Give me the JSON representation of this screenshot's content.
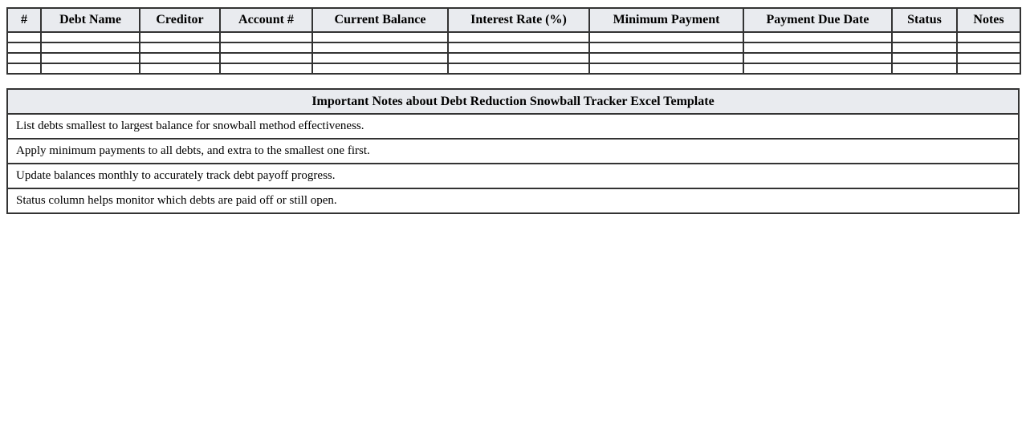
{
  "debt_table": {
    "columns": [
      "#",
      "Debt Name",
      "Creditor",
      "Account #",
      "Current Balance",
      "Interest Rate (%)",
      "Minimum Payment",
      "Payment Due Date",
      "Status",
      "Notes"
    ],
    "rows": [
      [
        "",
        "",
        "",
        "",
        "",
        "",
        "",
        "",
        "",
        ""
      ],
      [
        "",
        "",
        "",
        "",
        "",
        "",
        "",
        "",
        "",
        ""
      ],
      [
        "",
        "",
        "",
        "",
        "",
        "",
        "",
        "",
        "",
        ""
      ],
      [
        "",
        "",
        "",
        "",
        "",
        "",
        "",
        "",
        "",
        ""
      ]
    ]
  },
  "notes_table": {
    "title": "Important Notes about Debt Reduction Snowball Tracker Excel Template",
    "notes": [
      "List debts smallest to largest balance for snowball method effectiveness.",
      "Apply minimum payments to all debts, and extra to the smallest one first.",
      "Update balances monthly to accurately track debt payoff progress.",
      "Status column helps monitor which debts are paid off or still open."
    ]
  },
  "colors": {
    "header_bg": "#e9ebef",
    "border": "#333333",
    "text": "#000000"
  }
}
